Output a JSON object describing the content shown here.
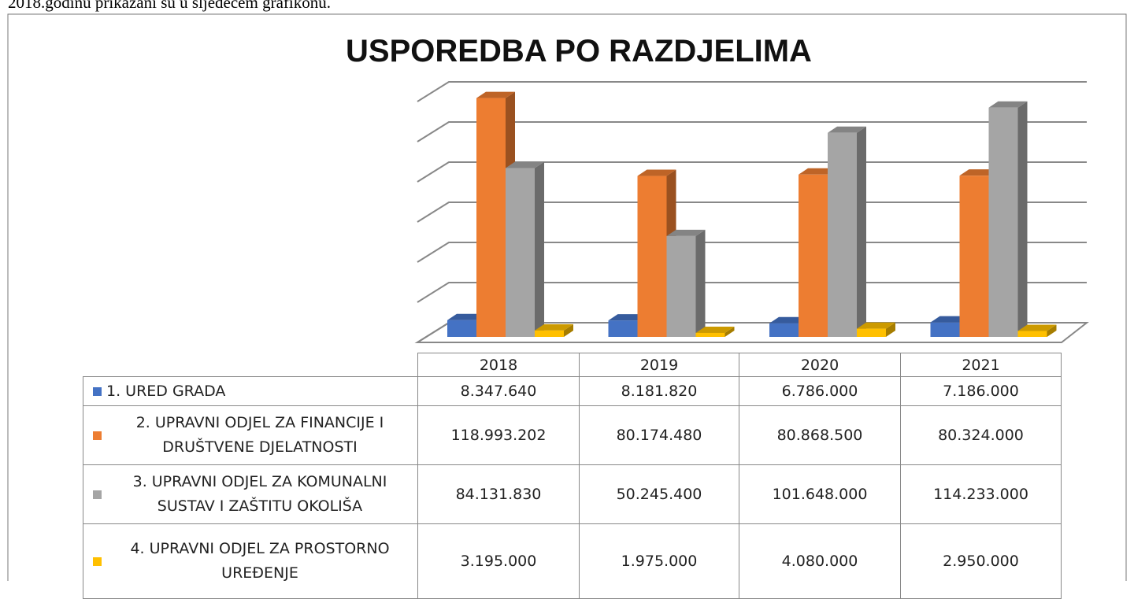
{
  "page_text": "2018.godinu prikazani su u sljedećem grafikonu.",
  "chart_data": {
    "type": "bar",
    "title": "USPOREDBA PO RAZDJELIMA",
    "categories": [
      "2018",
      "2019",
      "2020",
      "2021"
    ],
    "series": [
      {
        "name": "1. URED GRADA",
        "color": "#4472c4",
        "values": [
          8347640,
          8181820,
          6786000,
          7186000
        ],
        "value_labels": [
          "8.347.640",
          "8.181.820",
          "6.786.000",
          "7.186.000"
        ]
      },
      {
        "name": "2. UPRAVNI ODJEL ZA FINANCIJE I DRUŠTVENE DJELATNOSTI",
        "color": "#ed7d31",
        "values": [
          118993202,
          80174480,
          80868500,
          80324000
        ],
        "value_labels": [
          "118.993.202",
          "80.174.480",
          "80.868.500",
          "80.324.000"
        ]
      },
      {
        "name": "3. UPRAVNI ODJEL ZA KOMUNALNI SUSTAV I ZAŠTITU OKOLIŠA",
        "color": "#a5a5a5",
        "values": [
          84131830,
          50245400,
          101648000,
          114233000
        ],
        "value_labels": [
          "84.131.830",
          "50.245.400",
          "101.648.000",
          "114.233.000"
        ]
      },
      {
        "name": "4. UPRAVNI ODJEL ZA PROSTORNO UREĐENJE",
        "color": "#ffc000",
        "values": [
          3195000,
          1975000,
          4080000,
          2950000
        ],
        "value_labels": [
          "3.195.000",
          "1.975.000",
          "4.080.000",
          "2.950.000"
        ]
      }
    ],
    "ylim": [
      0,
      120000000
    ],
    "yticks": [
      0,
      20000000,
      40000000,
      60000000,
      80000000,
      100000000,
      120000000
    ],
    "grid": true
  }
}
